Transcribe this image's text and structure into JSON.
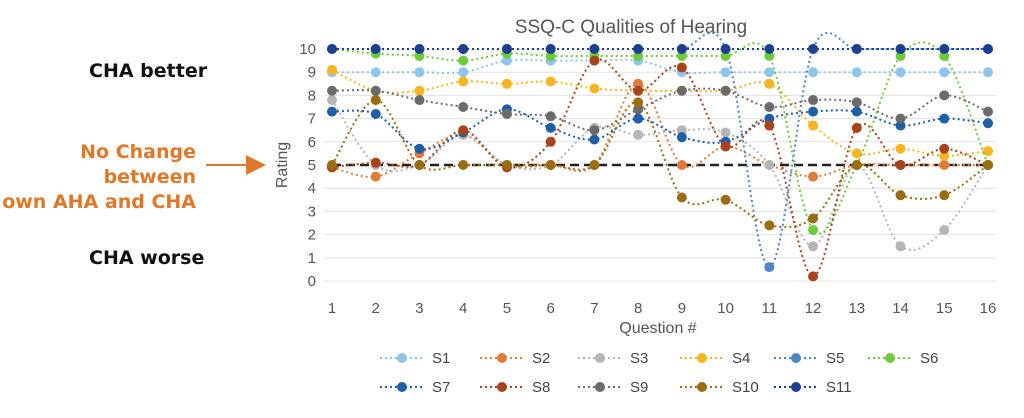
{
  "annotations": {
    "better": "CHA better",
    "no_change_line1": "No Change between",
    "no_change_line2": "own AHA and CHA",
    "worse": "CHA worse",
    "no_change_color": "#e0782a"
  },
  "chart_data": {
    "type": "line",
    "title": "SSQ-C Qualities of Hearing",
    "xlabel": "Question #",
    "ylabel": "Rating",
    "x": [
      1,
      2,
      3,
      4,
      5,
      6,
      7,
      8,
      9,
      10,
      11,
      12,
      13,
      14,
      15,
      16
    ],
    "ylim": [
      0,
      10
    ],
    "yticks": [
      0,
      1,
      2,
      3,
      4,
      5,
      6,
      7,
      8,
      9,
      10
    ],
    "grid": true,
    "legend_position": "bottom",
    "reference_line": {
      "y": 5,
      "style": "dashed",
      "color": "#222222"
    },
    "series": [
      {
        "name": "S1",
        "color": "#8fc5ea",
        "values": [
          9,
          9,
          9,
          9,
          9.5,
          9.5,
          9.5,
          9.5,
          9,
          9,
          9,
          9,
          9,
          9,
          9,
          9
        ]
      },
      {
        "name": "S2",
        "color": "#e07b39",
        "values": [
          4.9,
          4.5,
          5.5,
          6.3,
          5,
          5,
          5,
          8.5,
          5,
          5.8,
          5,
          4.5,
          5,
          5,
          5,
          5
        ]
      },
      {
        "name": "S3",
        "color": "#b5b5b5",
        "values": [
          7.8,
          5,
          5,
          6.3,
          5,
          5,
          6.6,
          6.3,
          6.5,
          6.4,
          5,
          1.5,
          5,
          1.5,
          2.2,
          5
        ]
      },
      {
        "name": "S4",
        "color": "#f5b622",
        "values": [
          9.1,
          8.2,
          8.2,
          8.6,
          8.5,
          8.6,
          8.3,
          8.2,
          8.2,
          8.2,
          8.5,
          6.7,
          5.5,
          5.7,
          5.4,
          5.6
        ]
      },
      {
        "name": "S5",
        "color": "#4a86c8",
        "values": [
          10,
          10,
          10,
          10,
          10,
          10,
          10,
          10,
          10,
          10,
          0.6,
          10,
          10,
          10,
          10,
          10
        ]
      },
      {
        "name": "S6",
        "color": "#6bcb3a",
        "values": [
          10,
          9.8,
          9.7,
          9.5,
          9.8,
          9.7,
          9.7,
          9.7,
          9.7,
          9.7,
          9.7,
          2.2,
          5,
          9.7,
          9.7,
          5
        ]
      },
      {
        "name": "S7",
        "color": "#1f5fa8",
        "values": [
          7.3,
          7.2,
          5.7,
          6.4,
          7.4,
          6.6,
          6.1,
          7,
          6.2,
          6,
          7,
          7.3,
          7.3,
          6.7,
          7,
          6.8
        ]
      },
      {
        "name": "S8",
        "color": "#a9431e",
        "values": [
          4.9,
          5.1,
          5,
          6.5,
          4.9,
          6,
          9.5,
          8.2,
          9.2,
          5.8,
          6.7,
          0.2,
          6.6,
          5,
          5.7,
          5
        ]
      },
      {
        "name": "S9",
        "color": "#6b6b6b",
        "values": [
          8.2,
          8.2,
          7.8,
          7.5,
          7.2,
          7.1,
          6.5,
          7.4,
          8.2,
          8.2,
          7.5,
          7.8,
          7.7,
          7,
          8,
          7.3
        ]
      },
      {
        "name": "S10",
        "color": "#9a6d12",
        "values": [
          5,
          7.8,
          5,
          5,
          5,
          5,
          5,
          7.7,
          3.6,
          3.5,
          2.4,
          2.7,
          5,
          3.7,
          3.7,
          5
        ]
      },
      {
        "name": "S11",
        "color": "#1d3f8f",
        "values": [
          10,
          10,
          10,
          10,
          10,
          10,
          10,
          10,
          10,
          10,
          10,
          10,
          10,
          10,
          10,
          10
        ]
      }
    ]
  }
}
